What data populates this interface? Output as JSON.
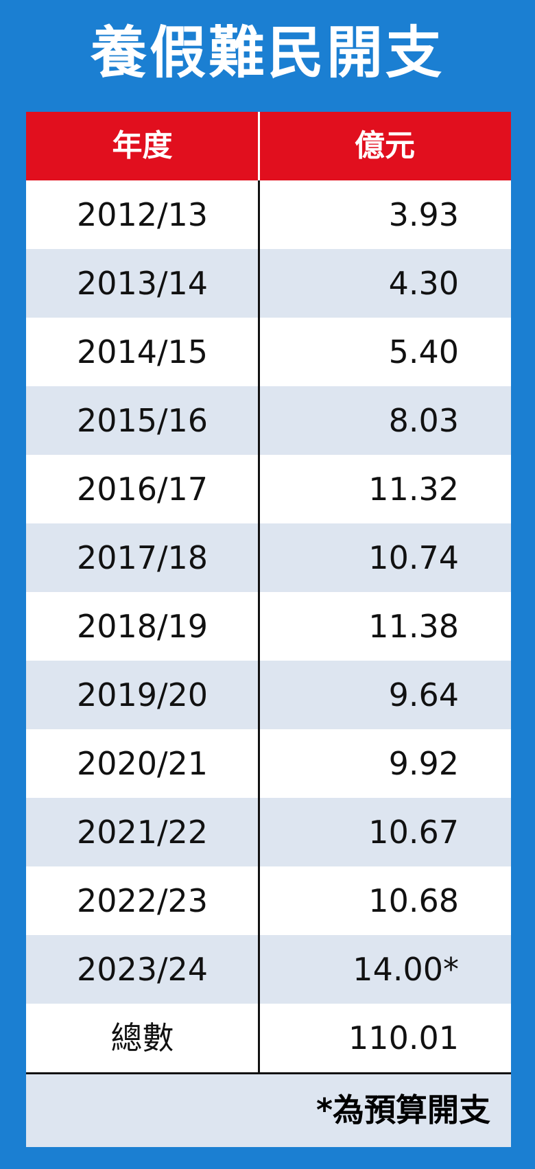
{
  "title": "養假難民開支",
  "table": {
    "header": [
      "年度",
      "億元"
    ],
    "rows": [
      [
        "2012/13",
        "3.93"
      ],
      [
        "2013/14",
        "4.30"
      ],
      [
        "2014/15",
        "5.40"
      ],
      [
        "2015/16",
        "8.03"
      ],
      [
        "2016/17",
        "11.32"
      ],
      [
        "2017/18",
        "10.74"
      ],
      [
        "2018/19",
        "11.38"
      ],
      [
        "2019/20",
        "9.64"
      ],
      [
        "2020/21",
        "9.92"
      ],
      [
        "2021/22",
        "10.67"
      ],
      [
        "2022/23",
        "10.68"
      ],
      [
        "2023/24",
        "14.00*"
      ],
      [
        "總數",
        "110.01"
      ]
    ],
    "note": "*為預算開支"
  }
}
